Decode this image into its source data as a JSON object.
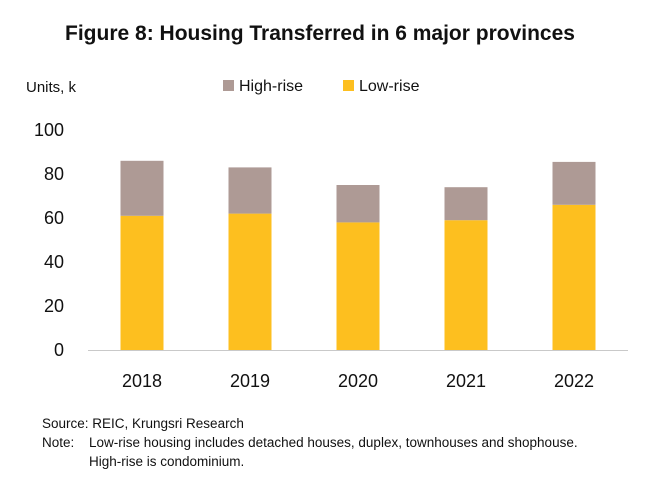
{
  "chart_data": {
    "type": "bar",
    "stacked": true,
    "title": "Figure 8: Housing Transferred in 6 major provinces",
    "ylabel": "Units, k",
    "xlabel": "",
    "categories": [
      "2018",
      "2019",
      "2020",
      "2021",
      "2022"
    ],
    "series": [
      {
        "name": "Low-rise",
        "color": "#FDBF1F",
        "values": [
          61,
          62,
          58,
          59,
          66
        ]
      },
      {
        "name": "High-rise",
        "color": "#AE9A95",
        "values": [
          25,
          21,
          17,
          15,
          19.5
        ]
      }
    ],
    "legend_order": [
      "High-rise",
      "Low-rise"
    ],
    "legend_position": "top",
    "ylim": [
      0,
      100
    ],
    "yticks": [
      "0",
      "20",
      "40",
      "60",
      "80",
      "100"
    ],
    "grid": false
  },
  "footnotes": {
    "source": "Source: REIC, Krungsri Research",
    "note_prefix": "Note:",
    "note_line1": "Low-rise housing  includes detached houses, duplex, townhouses and shophouse.",
    "note_line2": "High-rise is condominium."
  }
}
